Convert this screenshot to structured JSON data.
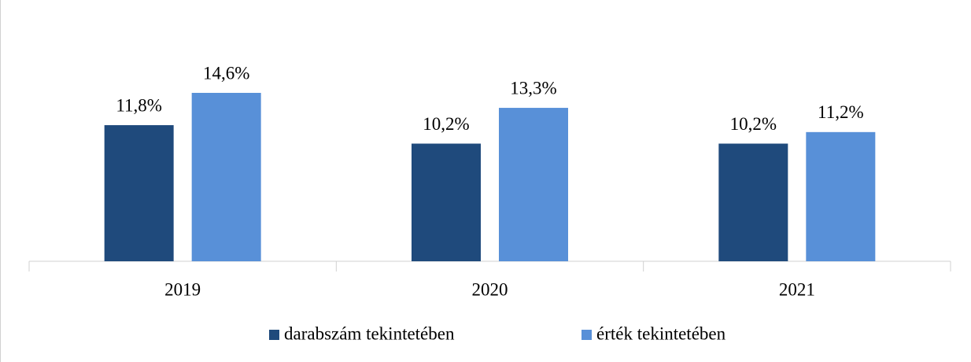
{
  "chart_data": {
    "type": "bar",
    "categories": [
      "2019",
      "2020",
      "2021"
    ],
    "series": [
      {
        "name": "darabszám tekintetében",
        "color": "#1f4a7c",
        "values": [
          11.8,
          10.2,
          10.2
        ],
        "value_labels": [
          "11,8%",
          "10,2%",
          "10,2%"
        ]
      },
      {
        "name": "érték tekintetében",
        "color": "#5890d8",
        "values": [
          14.6,
          13.3,
          11.2
        ],
        "value_labels": [
          "14,6%",
          "13,3%",
          "11,2%"
        ]
      }
    ],
    "legend": "bottom"
  }
}
